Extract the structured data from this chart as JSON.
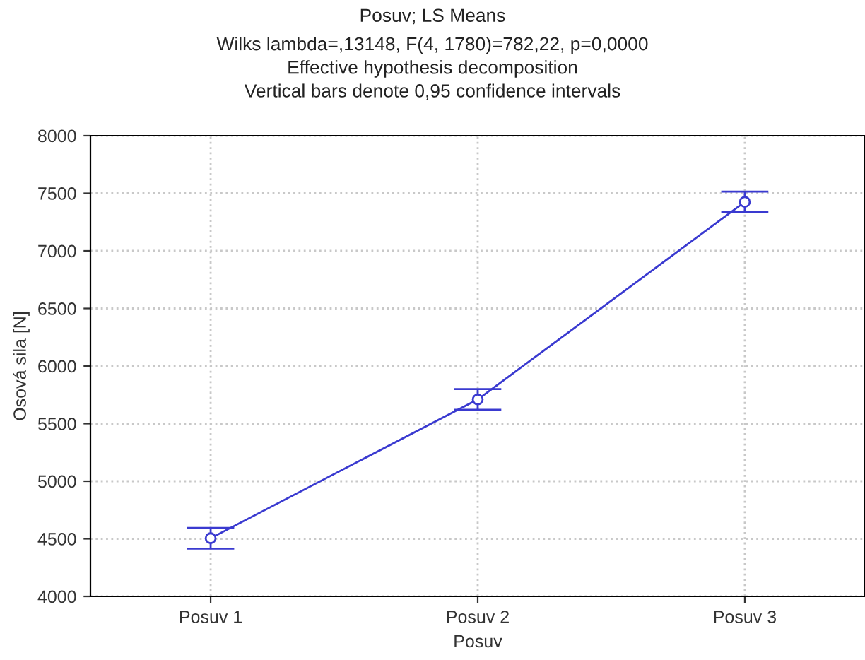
{
  "chart_data": {
    "type": "line",
    "title": "Posuv; LS Means",
    "subtitle": "Wilks lambda=,13148, F(4, 1780)=782,22, p=0,0000\nEffective hypothesis decomposition\nVertical bars denote 0,95 confidence intervals",
    "xlabel": "Posuv",
    "ylabel": "Osová sila [N]",
    "categories": [
      "Posuv 1",
      "Posuv 2",
      "Posuv 3"
    ],
    "series": [
      {
        "color": "#3a3ad0",
        "values": [
          4505,
          5710,
          7425
        ],
        "errors": [
          90,
          90,
          90
        ]
      }
    ],
    "ylim": [
      4000,
      8000
    ],
    "yticks": [
      4000,
      4500,
      5000,
      5500,
      6000,
      6500,
      7000,
      7500,
      8000
    ],
    "grid": true,
    "marker": "circle",
    "line_style": "solid"
  }
}
